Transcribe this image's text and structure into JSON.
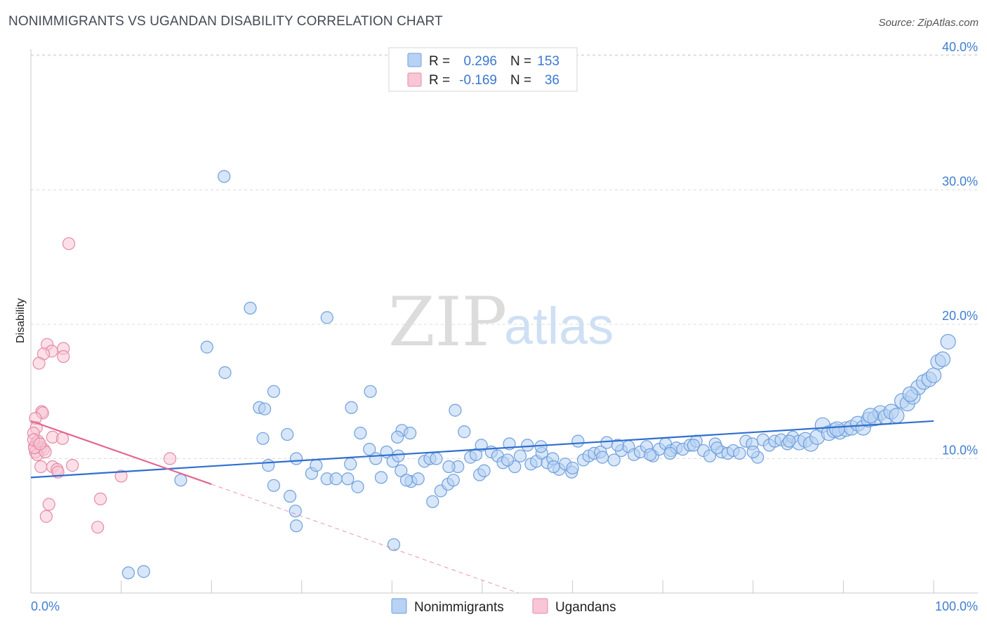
{
  "title": "NONIMMIGRANTS VS UGANDAN DISABILITY CORRELATION CHART",
  "source": "Source: ZipAtlas.com",
  "watermark": {
    "zip": "ZIP",
    "atlas": "atlas"
  },
  "legend": {
    "rows": [
      {
        "r_label": "R =",
        "r_value": "0.296",
        "n_label": "N =",
        "n_value": "153",
        "fill": "#b7d2f3",
        "stroke": "#6f9fdc"
      },
      {
        "r_label": "R =",
        "r_value": "-0.169",
        "n_label": "N =",
        "n_value": "36",
        "fill": "#f8c6d5",
        "stroke": "#e68aa7"
      }
    ]
  },
  "bottom_legend": [
    "Nonimmigrants",
    "Ugandans"
  ],
  "chart_data": {
    "type": "scatter",
    "ylabel": "Disability",
    "xlim": [
      0,
      100
    ],
    "ylim": [
      0,
      41
    ],
    "x_tick_labels": {
      "min": "0.0%",
      "max": "100.0%"
    },
    "y_ticks": [
      10,
      20,
      30,
      40
    ],
    "y_tick_labels": [
      "10.0%",
      "20.0%",
      "30.0%",
      "40.0%"
    ],
    "colors": {
      "nonimmigrants_fill": "#b7d2f3",
      "nonimmigrants_stroke": "#6f9fdc",
      "nonimmigrants_line": "#2f6fcf",
      "ugandans_fill": "#f8c6d5",
      "ugandans_stroke": "#e68aa7",
      "ugandans_line": "#e56690"
    },
    "series": [
      {
        "name": "Nonimmigrants",
        "trend": {
          "x1": 0,
          "y1": 8.6,
          "x2": 100,
          "y2": 12.8
        },
        "points": [
          [
            21.4,
            31.0
          ],
          [
            24.3,
            21.2
          ],
          [
            32.8,
            20.5
          ],
          [
            19.5,
            18.3
          ],
          [
            21.5,
            16.4
          ],
          [
            26.9,
            15.0
          ],
          [
            25.3,
            13.8
          ],
          [
            25.9,
            13.7
          ],
          [
            35.5,
            13.8
          ],
          [
            37.6,
            15.0
          ],
          [
            36.5,
            11.9
          ],
          [
            41.1,
            12.1
          ],
          [
            42.0,
            11.9
          ],
          [
            25.7,
            11.5
          ],
          [
            28.4,
            11.8
          ],
          [
            10.8,
            1.5
          ],
          [
            12.5,
            1.6
          ],
          [
            16.6,
            8.4
          ],
          [
            26.9,
            8.0
          ],
          [
            28.7,
            7.2
          ],
          [
            29.3,
            6.1
          ],
          [
            29.4,
            5.0
          ],
          [
            40.2,
            3.6
          ],
          [
            26.3,
            9.5
          ],
          [
            29.4,
            10.0
          ],
          [
            31.1,
            8.9
          ],
          [
            31.6,
            9.5
          ],
          [
            32.8,
            8.5
          ],
          [
            33.8,
            8.5
          ],
          [
            35.1,
            8.5
          ],
          [
            35.4,
            9.6
          ],
          [
            36.2,
            7.9
          ],
          [
            37.5,
            10.7
          ],
          [
            38.2,
            10.0
          ],
          [
            38.8,
            8.6
          ],
          [
            39.4,
            10.5
          ],
          [
            40.1,
            9.8
          ],
          [
            40.7,
            10.2
          ],
          [
            41.0,
            9.1
          ],
          [
            42.1,
            8.3
          ],
          [
            42.9,
            8.5
          ],
          [
            43.6,
            9.8
          ],
          [
            44.2,
            10.0
          ],
          [
            44.5,
            6.8
          ],
          [
            44.9,
            10.0
          ],
          [
            45.4,
            7.6
          ],
          [
            46.2,
            8.1
          ],
          [
            46.8,
            8.4
          ],
          [
            47.3,
            9.4
          ],
          [
            48.0,
            12.0
          ],
          [
            48.7,
            10.1
          ],
          [
            49.3,
            10.3
          ],
          [
            49.7,
            8.8
          ],
          [
            50.2,
            9.1
          ],
          [
            51.0,
            10.5
          ],
          [
            51.7,
            10.2
          ],
          [
            52.3,
            9.7
          ],
          [
            53.0,
            11.1
          ],
          [
            53.6,
            9.4
          ],
          [
            54.2,
            10.2
          ],
          [
            55.0,
            11.0
          ],
          [
            55.4,
            9.6
          ],
          [
            56.0,
            9.8
          ],
          [
            56.6,
            10.4
          ],
          [
            57.2,
            9.7
          ],
          [
            57.8,
            10.0
          ],
          [
            58.5,
            9.2
          ],
          [
            59.2,
            9.6
          ],
          [
            59.9,
            9.0
          ],
          [
            60.6,
            11.3
          ],
          [
            61.2,
            9.9
          ],
          [
            61.8,
            10.2
          ],
          [
            62.4,
            10.4
          ],
          [
            63.1,
            10.5
          ],
          [
            63.8,
            11.2
          ],
          [
            64.6,
            9.9
          ],
          [
            65.4,
            10.6
          ],
          [
            66.2,
            10.9
          ],
          [
            66.8,
            10.3
          ],
          [
            67.5,
            10.5
          ],
          [
            68.2,
            10.9
          ],
          [
            68.9,
            10.2
          ],
          [
            69.6,
            10.7
          ],
          [
            70.3,
            11.1
          ],
          [
            70.9,
            10.6
          ],
          [
            71.5,
            10.8
          ],
          [
            72.2,
            10.7
          ],
          [
            73.0,
            11.0
          ],
          [
            73.7,
            11.3
          ],
          [
            74.5,
            10.6
          ],
          [
            75.2,
            10.2
          ],
          [
            75.8,
            11.1
          ],
          [
            76.5,
            10.5
          ],
          [
            77.2,
            10.4
          ],
          [
            77.8,
            10.6
          ],
          [
            78.5,
            10.4
          ],
          [
            79.2,
            11.3
          ],
          [
            79.9,
            11.1
          ],
          [
            80.5,
            10.1
          ],
          [
            81.1,
            11.4
          ],
          [
            81.8,
            11.0
          ],
          [
            82.4,
            11.3
          ],
          [
            83.1,
            11.4
          ],
          [
            83.8,
            11.1
          ],
          [
            84.4,
            11.6
          ],
          [
            85.1,
            11.2
          ],
          [
            85.8,
            11.4
          ],
          [
            86.4,
            11.1
          ],
          [
            87.1,
            11.6
          ],
          [
            87.7,
            12.5
          ],
          [
            88.4,
            11.9
          ],
          [
            89.0,
            12.1
          ],
          [
            89.6,
            12.0
          ],
          [
            90.3,
            12.2
          ],
          [
            90.9,
            12.3
          ],
          [
            91.6,
            12.6
          ],
          [
            92.2,
            12.3
          ],
          [
            92.8,
            12.9
          ],
          [
            93.5,
            13.0
          ],
          [
            94.1,
            13.4
          ],
          [
            94.7,
            13.1
          ],
          [
            95.3,
            13.5
          ],
          [
            95.9,
            13.2
          ],
          [
            96.5,
            14.3
          ],
          [
            97.1,
            14.1
          ],
          [
            97.7,
            14.6
          ],
          [
            98.3,
            15.3
          ],
          [
            98.9,
            15.7
          ],
          [
            99.5,
            15.9
          ],
          [
            100.0,
            16.2
          ],
          [
            100.5,
            17.2
          ],
          [
            101.0,
            17.4
          ],
          [
            101.6,
            18.7
          ],
          [
            47.0,
            13.6
          ],
          [
            40.6,
            11.6
          ],
          [
            56.5,
            10.9
          ],
          [
            65.0,
            11.0
          ],
          [
            70.8,
            10.4
          ],
          [
            76.0,
            10.8
          ],
          [
            84.0,
            11.3
          ],
          [
            89.3,
            12.2
          ],
          [
            93.0,
            13.2
          ],
          [
            97.4,
            14.8
          ],
          [
            60.0,
            9.3
          ],
          [
            57.9,
            9.4
          ],
          [
            46.3,
            9.4
          ],
          [
            41.6,
            8.4
          ],
          [
            49.9,
            11.0
          ],
          [
            52.8,
            9.9
          ],
          [
            63.3,
            10.1
          ],
          [
            68.6,
            10.3
          ],
          [
            73.4,
            11.0
          ],
          [
            80.0,
            10.5
          ]
        ]
      },
      {
        "name": "Ugandans",
        "trend": {
          "x1": 0,
          "y1": 12.8,
          "x2": 20,
          "y2": 8.1,
          "dash_x2": 54,
          "dash_y2": 0
        },
        "points": [
          [
            4.2,
            26.0
          ],
          [
            1.8,
            18.5
          ],
          [
            2.3,
            18.0
          ],
          [
            3.6,
            18.2
          ],
          [
            1.4,
            17.8
          ],
          [
            3.6,
            17.6
          ],
          [
            0.9,
            17.1
          ],
          [
            1.2,
            13.5
          ],
          [
            1.3,
            13.4
          ],
          [
            0.5,
            13.0
          ],
          [
            0.6,
            12.3
          ],
          [
            0.3,
            11.9
          ],
          [
            2.4,
            11.6
          ],
          [
            3.5,
            11.5
          ],
          [
            0.6,
            11.2
          ],
          [
            0.4,
            10.9
          ],
          [
            1.1,
            10.8
          ],
          [
            1.4,
            10.7
          ],
          [
            0.5,
            10.5
          ],
          [
            0.7,
            10.3
          ],
          [
            1.6,
            10.5
          ],
          [
            0.4,
            10.8
          ],
          [
            15.4,
            10.0
          ],
          [
            0.8,
            11.3
          ],
          [
            2.4,
            9.4
          ],
          [
            4.6,
            9.5
          ],
          [
            1.1,
            9.4
          ],
          [
            2.9,
            9.2
          ],
          [
            3.0,
            9.0
          ],
          [
            10.0,
            8.7
          ],
          [
            2.0,
            6.6
          ],
          [
            7.7,
            7.0
          ],
          [
            1.7,
            5.7
          ],
          [
            7.4,
            4.9
          ],
          [
            0.3,
            11.4
          ],
          [
            1.0,
            11.1
          ]
        ]
      }
    ]
  }
}
